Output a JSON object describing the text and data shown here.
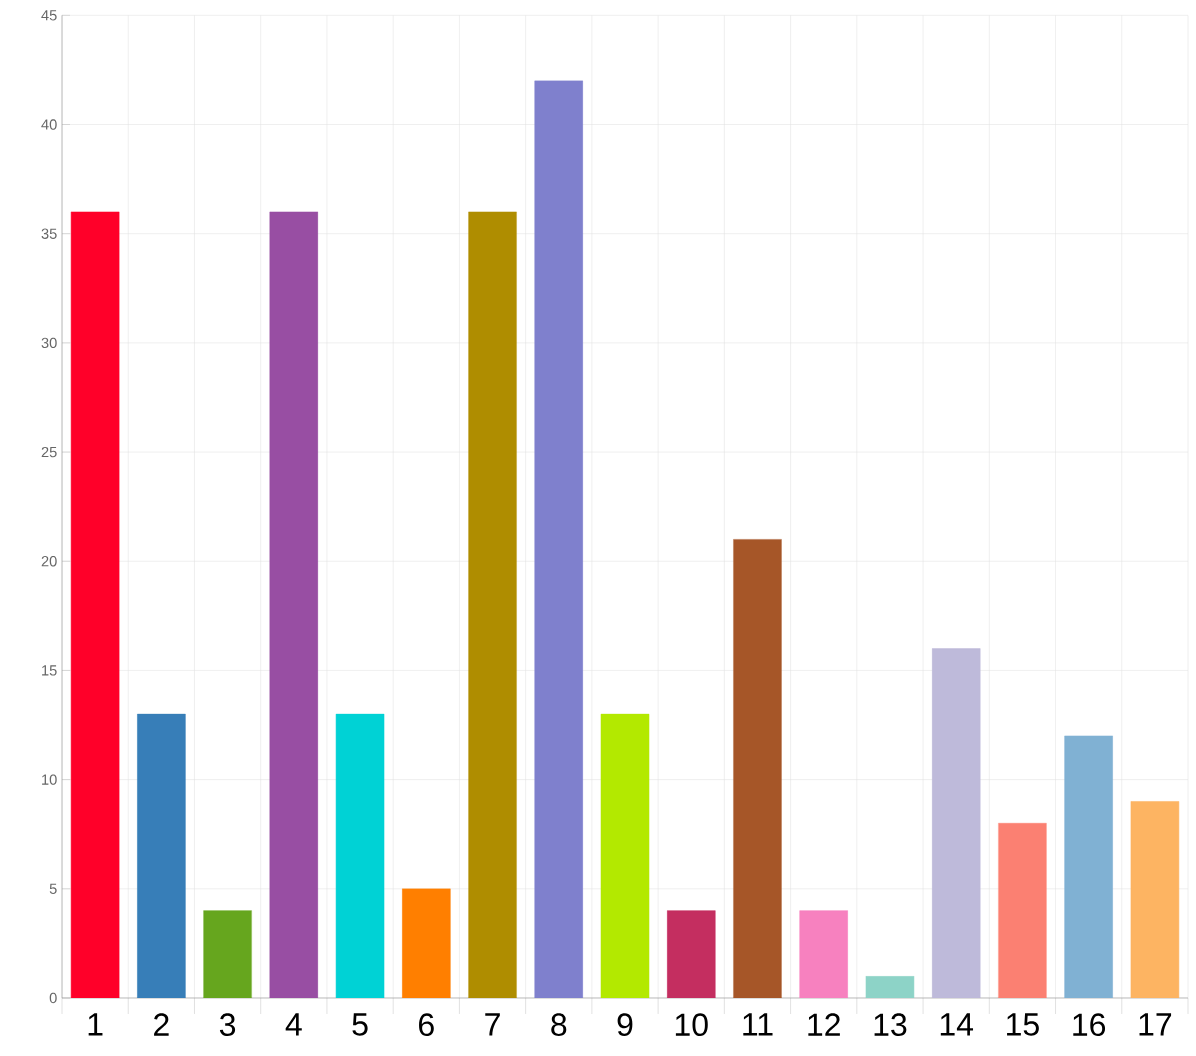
{
  "chart_data": {
    "type": "bar",
    "categories": [
      "1",
      "2",
      "3",
      "4",
      "5",
      "6",
      "7",
      "8",
      "9",
      "10",
      "11",
      "12",
      "13",
      "14",
      "15",
      "16",
      "17"
    ],
    "values": [
      36,
      13,
      4,
      36,
      13,
      5,
      36,
      42,
      13,
      4,
      21,
      4,
      1,
      16,
      8,
      12,
      9
    ],
    "colors": [
      "#ff0029",
      "#377eb8",
      "#66a61e",
      "#984ea3",
      "#00d2d5",
      "#ff7f00",
      "#af8d00",
      "#7f80cd",
      "#b3e900",
      "#c42e60",
      "#a65628",
      "#f781bf",
      "#8dd3c7",
      "#bebada",
      "#fb8072",
      "#80b1d3",
      "#fdb462"
    ],
    "ylim": [
      0,
      45
    ],
    "yticks": [
      0,
      5,
      10,
      15,
      20,
      25,
      30,
      35,
      40,
      45
    ],
    "grid": true
  }
}
